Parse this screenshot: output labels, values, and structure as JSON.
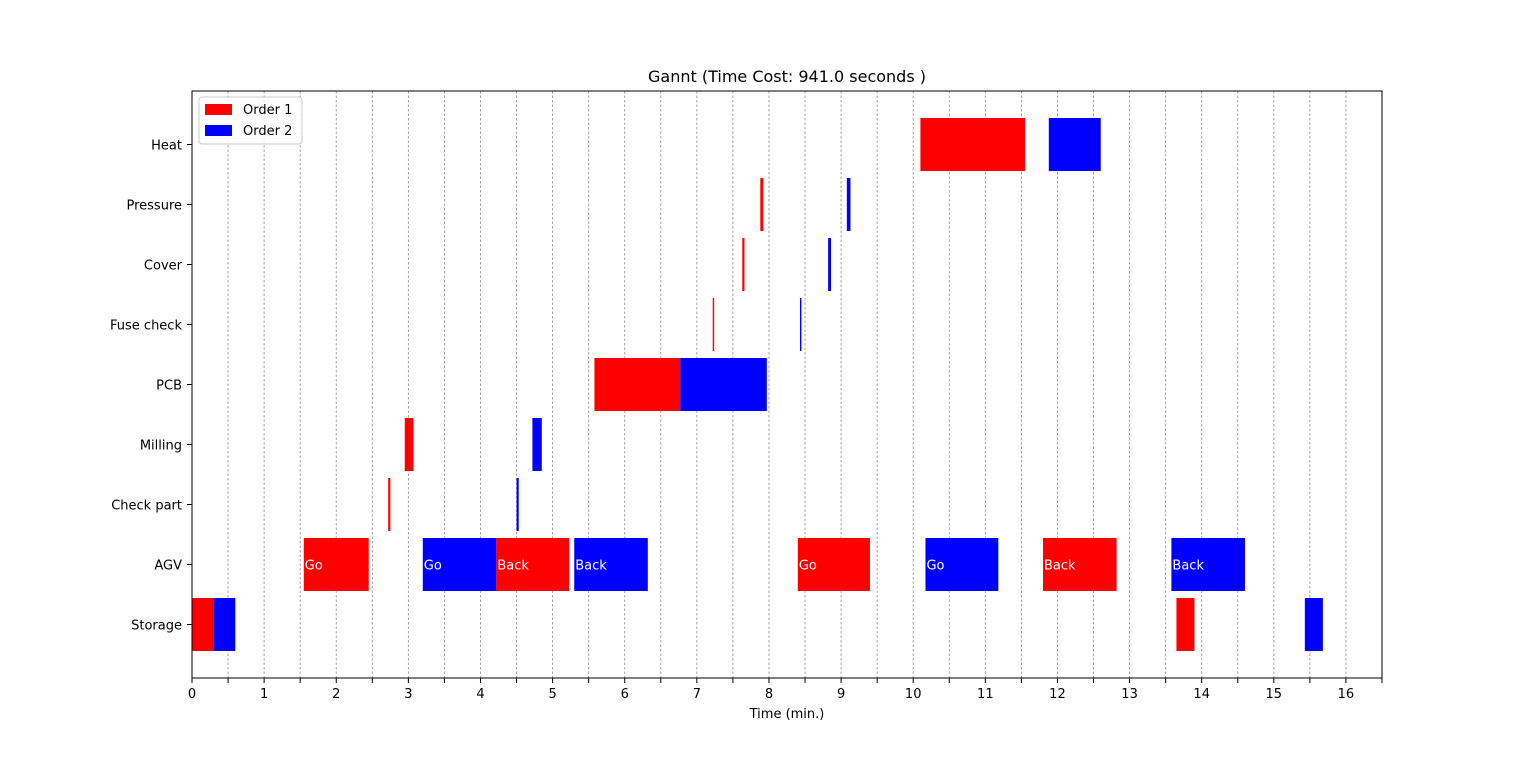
{
  "chart_data": {
    "type": "gantt",
    "title": "Gannt (Time Cost: 941.0 seconds )",
    "xlabel": "Time (min.)",
    "ylabel": "",
    "xlim": [
      0,
      16.5
    ],
    "x_ticks": [
      0,
      1,
      2,
      3,
      4,
      5,
      6,
      7,
      8,
      9,
      10,
      11,
      12,
      13,
      14,
      15,
      16
    ],
    "x_tick_labels": [
      "0",
      "1",
      "2",
      "3",
      "4",
      "5",
      "6",
      "7",
      "8",
      "9",
      "10",
      "11",
      "12",
      "13",
      "14",
      "15",
      "16"
    ],
    "x_minor_step": 0.5,
    "grid": "vertical dashed",
    "legend_position": "upper-left",
    "resources": [
      "Heat",
      "Pressure",
      "Cover",
      "Fuse check",
      "PCB",
      "Milling",
      "Check part",
      "AGV",
      "Storage"
    ],
    "series": [
      {
        "name": "Order 1",
        "color": "#ff0000"
      },
      {
        "name": "Order 2",
        "color": "#0000ff"
      }
    ],
    "tasks": [
      {
        "resource": "Storage",
        "series": 0,
        "start": 0.0,
        "end": 0.3,
        "label": ""
      },
      {
        "resource": "Storage",
        "series": 1,
        "start": 0.3,
        "end": 0.6,
        "label": ""
      },
      {
        "resource": "AGV",
        "series": 0,
        "start": 1.55,
        "end": 2.45,
        "label": "Go"
      },
      {
        "resource": "Check part",
        "series": 0,
        "start": 2.72,
        "end": 2.75,
        "label": ""
      },
      {
        "resource": "Milling",
        "series": 0,
        "start": 2.95,
        "end": 3.07,
        "label": ""
      },
      {
        "resource": "AGV",
        "series": 1,
        "start": 3.2,
        "end": 4.22,
        "label": "Go"
      },
      {
        "resource": "AGV",
        "series": 0,
        "start": 4.22,
        "end": 5.23,
        "label": "Back"
      },
      {
        "resource": "Check part",
        "series": 1,
        "start": 4.5,
        "end": 4.53,
        "label": ""
      },
      {
        "resource": "Milling",
        "series": 1,
        "start": 4.72,
        "end": 4.85,
        "label": ""
      },
      {
        "resource": "AGV",
        "series": 1,
        "start": 5.3,
        "end": 6.32,
        "label": "Back"
      },
      {
        "resource": "PCB",
        "series": 0,
        "start": 5.58,
        "end": 6.77,
        "label": ""
      },
      {
        "resource": "PCB",
        "series": 1,
        "start": 6.77,
        "end": 7.97,
        "label": ""
      },
      {
        "resource": "Fuse check",
        "series": 0,
        "start": 7.22,
        "end": 7.24,
        "label": ""
      },
      {
        "resource": "Cover",
        "series": 0,
        "start": 7.63,
        "end": 7.66,
        "label": ""
      },
      {
        "resource": "Pressure",
        "series": 0,
        "start": 7.88,
        "end": 7.92,
        "label": ""
      },
      {
        "resource": "AGV",
        "series": 0,
        "start": 8.4,
        "end": 9.4,
        "label": "Go"
      },
      {
        "resource": "Fuse check",
        "series": 1,
        "start": 8.43,
        "end": 8.45,
        "label": ""
      },
      {
        "resource": "Cover",
        "series": 1,
        "start": 8.82,
        "end": 8.86,
        "label": ""
      },
      {
        "resource": "Pressure",
        "series": 1,
        "start": 9.08,
        "end": 9.13,
        "label": ""
      },
      {
        "resource": "Heat",
        "series": 0,
        "start": 10.1,
        "end": 11.55,
        "label": ""
      },
      {
        "resource": "AGV",
        "series": 1,
        "start": 10.17,
        "end": 11.18,
        "label": "Go"
      },
      {
        "resource": "AGV",
        "series": 0,
        "start": 11.8,
        "end": 12.82,
        "label": "Back"
      },
      {
        "resource": "Heat",
        "series": 1,
        "start": 11.88,
        "end": 12.6,
        "label": ""
      },
      {
        "resource": "AGV",
        "series": 1,
        "start": 13.58,
        "end": 14.6,
        "label": "Back"
      },
      {
        "resource": "Storage",
        "series": 0,
        "start": 13.65,
        "end": 13.9,
        "label": ""
      },
      {
        "resource": "Storage",
        "series": 1,
        "start": 15.43,
        "end": 15.68,
        "label": ""
      }
    ]
  }
}
